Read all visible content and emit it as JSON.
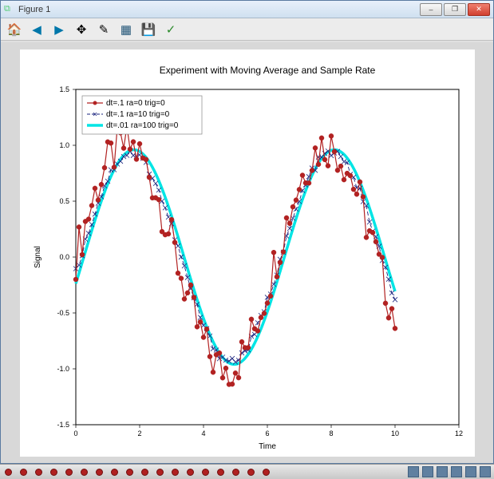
{
  "window": {
    "title": "Figure 1",
    "buttons": {
      "min": "–",
      "max": "❐",
      "close": "✕"
    }
  },
  "toolbar": {
    "home": "🏠",
    "back": "◀",
    "fwd": "▶",
    "pan": "✥",
    "zoom": "✎",
    "subplots": "▦",
    "save": "💾",
    "ok": "✓"
  },
  "chart": {
    "type": "line",
    "title": "Experiment with Moving Average and Sample Rate",
    "xlabel": "Time",
    "ylabel": "Signal",
    "xlim": [
      0,
      12
    ],
    "ylim": [
      -1.5,
      1.5
    ],
    "xticks": [
      0,
      2,
      4,
      6,
      8,
      10,
      12
    ],
    "yticks": [
      -1.5,
      -1.0,
      -0.5,
      0.0,
      0.5,
      1.0,
      1.5
    ],
    "background_color": "#ffffff",
    "axes_color": "#000000",
    "tick_fontsize": 9,
    "label_fontsize": 10,
    "title_fontsize": 12,
    "legend_position": "upper-left",
    "series": [
      {
        "label": "dt=.1 ra=0 trig=0",
        "color": "#b22222",
        "marker": "circle",
        "marker_size": 3,
        "marker_fill": "#b22222",
        "line_width": 1.2,
        "line_style": "solid",
        "x_step": 0.1,
        "x_min": 0,
        "x_max": 10,
        "base": "sin",
        "noise_amp": 0.2
      },
      {
        "label": "dt=.1 ra=10 trig=0",
        "color": "#1a237e",
        "marker": "x",
        "marker_size": 3,
        "line_width": 0.9,
        "line_style": "dashed",
        "x_step": 0.1,
        "x_min": 0,
        "x_max": 10,
        "base": "sin",
        "phase_shift": 0.15,
        "amp": 0.93,
        "noise_amp": 0.04
      },
      {
        "label": "dt=.01 ra=100 trig=0",
        "color": "#00e5e5",
        "marker": "none",
        "line_width": 3.5,
        "line_style": "solid",
        "x_step": 0.01,
        "x_min": 0,
        "x_max": 10,
        "base": "sin",
        "phase_shift": 0.25,
        "amp": 0.96
      }
    ]
  },
  "taskbar": {
    "dot_count": 18,
    "dot_color": "#b02020"
  }
}
